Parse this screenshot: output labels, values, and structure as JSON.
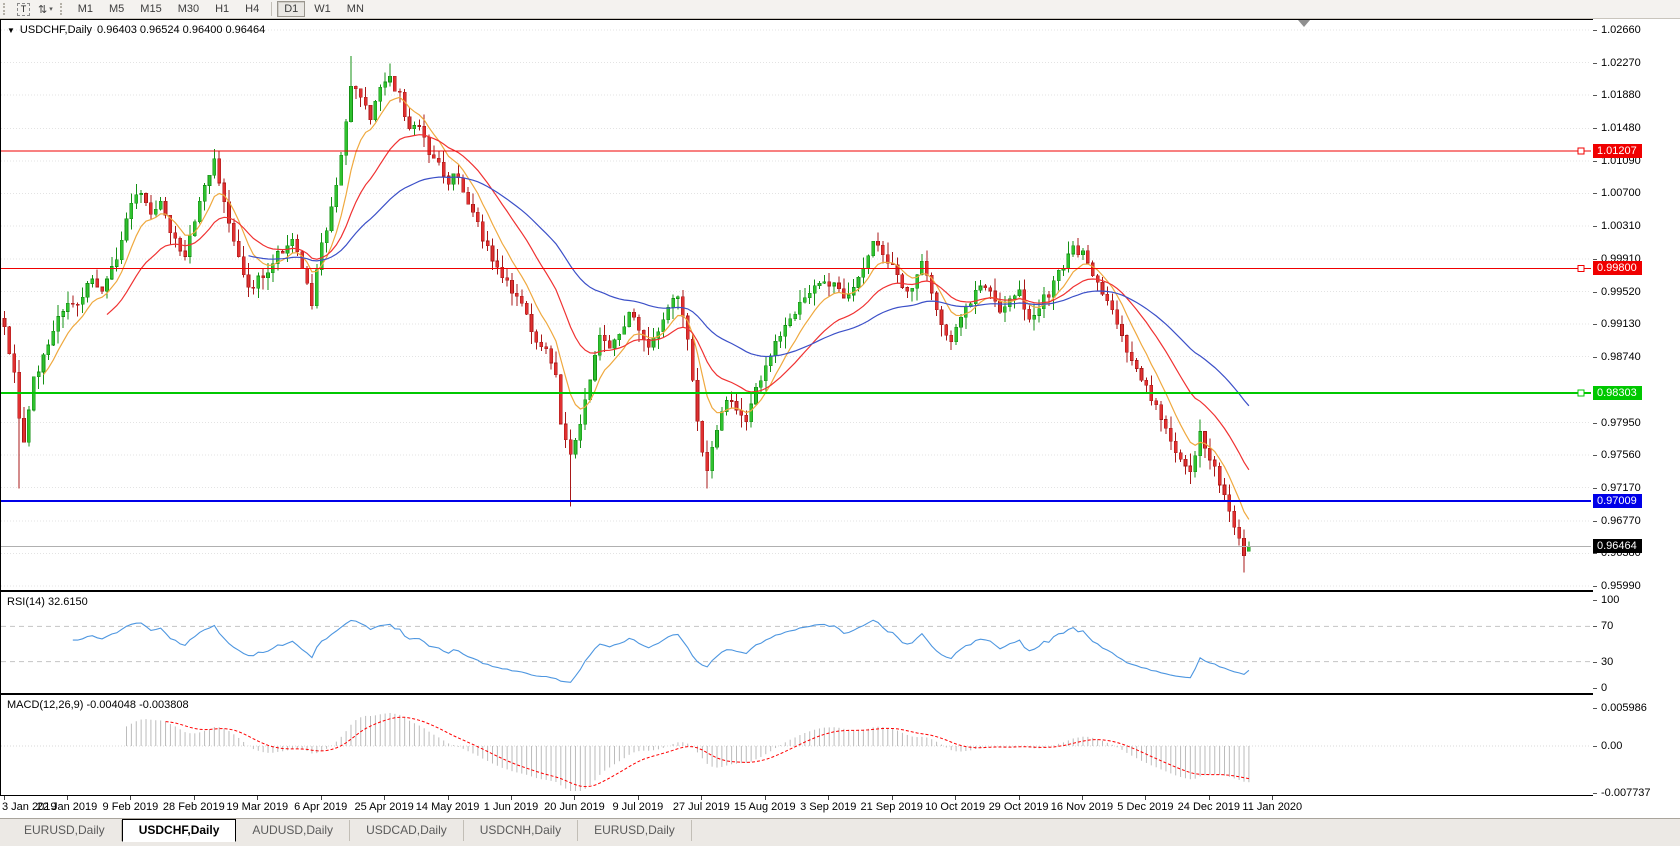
{
  "toolbar": {
    "tools": [
      {
        "name": "text-labels-tool",
        "glyph": "T"
      },
      {
        "name": "cursor-mode-tool",
        "glyph": "⇅",
        "caret": "▾"
      }
    ],
    "timeframes": [
      "M1",
      "M5",
      "M15",
      "M30",
      "H1",
      "H4",
      "D1",
      "W1",
      "MN"
    ],
    "active_timeframe": "D1"
  },
  "window": {
    "title_symbol": "USDCHF,Daily",
    "ohlc_text": "0.96403 0.96524 0.96400 0.96464"
  },
  "chart_data": {
    "type": "candlestick",
    "symbol": "USDCHF",
    "timeframe": "Daily",
    "last_ohlc": {
      "open": 0.96403,
      "high": 0.96524,
      "low": 0.964,
      "close": 0.96464
    },
    "candles_count": 256,
    "noise_seed": 3.7,
    "close_anchors": [
      [
        0,
        0.9905
      ],
      [
        2,
        0.9858
      ],
      [
        3,
        0.98
      ],
      [
        4,
        0.9768
      ],
      [
        6,
        0.9845
      ],
      [
        9,
        0.9892
      ],
      [
        12,
        0.993
      ],
      [
        15,
        0.9938
      ],
      [
        18,
        0.9968
      ],
      [
        20,
        0.9955
      ],
      [
        23,
        0.9992
      ],
      [
        26,
        1.0058
      ],
      [
        28,
        1.0075
      ],
      [
        30,
        1.004
      ],
      [
        32,
        1.0056
      ],
      [
        34,
        1.0025
      ],
      [
        37,
        0.9996
      ],
      [
        40,
        1.0058
      ],
      [
        43,
        1.0108
      ],
      [
        45,
        1.006
      ],
      [
        47,
        1.001
      ],
      [
        50,
        0.9952
      ],
      [
        53,
        0.9972
      ],
      [
        56,
        0.9995
      ],
      [
        59,
        1.0016
      ],
      [
        61,
        0.9976
      ],
      [
        63,
        0.994
      ],
      [
        65,
        1.0008
      ],
      [
        67,
        1.0052
      ],
      [
        69,
        1.0118
      ],
      [
        71,
        1.0196
      ],
      [
        73,
        1.0186
      ],
      [
        75,
        1.016
      ],
      [
        77,
        1.0192
      ],
      [
        79,
        1.0206
      ],
      [
        81,
        1.0188
      ],
      [
        83,
        1.0145
      ],
      [
        85,
        1.0152
      ],
      [
        87,
        1.0118
      ],
      [
        89,
        1.0106
      ],
      [
        91,
        1.0086
      ],
      [
        93,
        1.0092
      ],
      [
        95,
        1.006
      ],
      [
        97,
        1.0032
      ],
      [
        99,
        1.0002
      ],
      [
        101,
        0.9982
      ],
      [
        103,
        0.9962
      ],
      [
        105,
        0.9945
      ],
      [
        107,
        0.9921
      ],
      [
        109,
        0.9896
      ],
      [
        111,
        0.9878
      ],
      [
        113,
        0.985
      ],
      [
        114,
        0.979
      ],
      [
        116,
        0.9752
      ],
      [
        118,
        0.9792
      ],
      [
        120,
        0.9845
      ],
      [
        122,
        0.9902
      ],
      [
        124,
        0.9882
      ],
      [
        126,
        0.9898
      ],
      [
        128,
        0.9926
      ],
      [
        130,
        0.9906
      ],
      [
        132,
        0.989
      ],
      [
        134,
        0.9906
      ],
      [
        136,
        0.9928
      ],
      [
        138,
        0.995
      ],
      [
        140,
        0.9898
      ],
      [
        142,
        0.9792
      ],
      [
        144,
        0.9732
      ],
      [
        146,
        0.9788
      ],
      [
        148,
        0.982
      ],
      [
        150,
        0.9812
      ],
      [
        152,
        0.9798
      ],
      [
        154,
        0.9832
      ],
      [
        156,
        0.986
      ],
      [
        158,
        0.9892
      ],
      [
        160,
        0.9912
      ],
      [
        162,
        0.993
      ],
      [
        164,
        0.9945
      ],
      [
        166,
        0.9955
      ],
      [
        168,
        0.9968
      ],
      [
        170,
        0.996
      ],
      [
        172,
        0.994
      ],
      [
        174,
        0.9962
      ],
      [
        176,
        0.9982
      ],
      [
        178,
        1.001
      ],
      [
        180,
        0.9996
      ],
      [
        182,
        0.998
      ],
      [
        184,
        0.996
      ],
      [
        186,
        0.9955
      ],
      [
        188,
        0.999
      ],
      [
        190,
        0.9948
      ],
      [
        192,
        0.9912
      ],
      [
        194,
        0.9892
      ],
      [
        196,
        0.9922
      ],
      [
        198,
        0.9942
      ],
      [
        200,
        0.9958
      ],
      [
        202,
        0.995
      ],
      [
        204,
        0.9928
      ],
      [
        206,
        0.9942
      ],
      [
        208,
        0.995
      ],
      [
        210,
        0.9916
      ],
      [
        212,
        0.9936
      ],
      [
        214,
        0.995
      ],
      [
        216,
        0.9975
      ],
      [
        218,
        0.9992
      ],
      [
        219,
        1.0006
      ],
      [
        221,
        0.9996
      ],
      [
        223,
        0.9975
      ],
      [
        225,
        0.9952
      ],
      [
        227,
        0.9926
      ],
      [
        229,
        0.9895
      ],
      [
        231,
        0.9869
      ],
      [
        233,
        0.985
      ],
      [
        235,
        0.9826
      ],
      [
        237,
        0.9798
      ],
      [
        239,
        0.9775
      ],
      [
        241,
        0.9748
      ],
      [
        243,
        0.9733
      ],
      [
        245,
        0.9786
      ],
      [
        247,
        0.9752
      ],
      [
        249,
        0.9722
      ],
      [
        251,
        0.9692
      ],
      [
        252,
        0.9672
      ],
      [
        253,
        0.9652
      ],
      [
        254,
        0.964
      ],
      [
        255,
        0.96464
      ]
    ],
    "wick_highs": {
      "43": 1.0123,
      "71": 1.0235,
      "79": 1.0226
    },
    "wick_lows": {
      "3": 0.9716,
      "116": 0.9694,
      "144": 0.9716,
      "254": 0.9615
    },
    "moving_averages": [
      {
        "name": "fast-ma",
        "period": 8,
        "color": "#efa93f"
      },
      {
        "name": "mid-ma",
        "period": 21,
        "color": "#f03232"
      },
      {
        "name": "slow-ma",
        "period": 50,
        "color": "#3c50c8"
      }
    ],
    "candle_colors": {
      "up_fill": "#2fc12f",
      "up_stroke": "#149014",
      "down_fill": "#e03030",
      "down_stroke": "#a81818"
    },
    "y_axis": {
      "labels": [
        {
          "text": "1.02660",
          "price": 1.0266
        },
        {
          "text": "1.02270",
          "price": 1.0227
        },
        {
          "text": "1.01880",
          "price": 1.0188
        },
        {
          "text": "1.01480",
          "price": 1.0148
        },
        {
          "text": "1.01090",
          "price": 1.0109
        },
        {
          "text": "1.00700",
          "price": 1.007
        },
        {
          "text": "1.00310",
          "price": 1.0031
        },
        {
          "text": "0.99910",
          "price": 0.9991
        },
        {
          "text": "0.99520",
          "price": 0.9952
        },
        {
          "text": "0.99130",
          "price": 0.9913
        },
        {
          "text": "0.98740",
          "price": 0.9874
        },
        {
          "text": "0.97950",
          "price": 0.9795
        },
        {
          "text": "0.97560",
          "price": 0.9756
        },
        {
          "text": "0.97170",
          "price": 0.9717
        },
        {
          "text": "0.96770",
          "price": 0.9677
        },
        {
          "text": "0.96380",
          "price": 0.9638
        },
        {
          "text": "0.95990",
          "price": 0.9599
        }
      ]
    },
    "price_lines": [
      {
        "label": "1.01207",
        "price": 1.01207,
        "color": "#f00000",
        "width": 1,
        "handle": true
      },
      {
        "label": "0.99800",
        "price": 0.998,
        "color": "#f00000",
        "width": 1,
        "handle": true
      },
      {
        "label": "0.98303",
        "price": 0.98303,
        "color": "#00c800",
        "width": 2,
        "handle": true
      },
      {
        "label": "0.97009",
        "price": 0.97009,
        "color": "#0000e8",
        "width": 2,
        "handle": false
      }
    ],
    "current_price": {
      "label": "0.96464",
      "price": 0.96464,
      "tag_color": "#000000",
      "line_color": "#b0b0b0"
    },
    "x_axis": {
      "labels": [
        "3 Jan 2019",
        "22 Jan 2019",
        "9 Feb 2019",
        "28 Feb 2019",
        "19 Mar 2019",
        "6 Apr 2019",
        "25 Apr 2019",
        "14 May 2019",
        "1 Jun 2019",
        "20 Jun 2019",
        "9 Jul 2019",
        "27 Jul 2019",
        "15 Aug 2019",
        "3 Sep 2019",
        "21 Sep 2019",
        "10 Oct 2019",
        "29 Oct 2019",
        "16 Nov 2019",
        "5 Dec 2019",
        "24 Dec 2019",
        "11 Jan 2020"
      ]
    },
    "rsi": {
      "label": "RSI(14) 32.6150",
      "period": 14,
      "last_value": 32.615,
      "color": "#4d96e0",
      "levels": [
        {
          "text": "100",
          "value": 100,
          "dashed": false
        },
        {
          "text": "70",
          "value": 70,
          "dashed": true
        },
        {
          "text": "30",
          "value": 30,
          "dashed": true
        },
        {
          "text": "0",
          "value": 0,
          "dashed": false
        }
      ]
    },
    "macd": {
      "label": "MACD(12,26,9) -0.004048 -0.003808",
      "fast": 12,
      "slow": 26,
      "signal": 9,
      "main_value": -0.004048,
      "signal_value": -0.003808,
      "histogram_color": "#bcbcbc",
      "signal_color": "#ff0000",
      "scale_max_label": "0.005986",
      "scale_zero_label": "0.00",
      "scale_min_label": "-0.007737",
      "scale_max": 0.005986,
      "scale_min": -0.007737
    }
  },
  "tabs": {
    "items": [
      {
        "label": "EURUSD,Daily",
        "active": false
      },
      {
        "label": "USDCHF,Daily",
        "active": true
      },
      {
        "label": "AUDUSD,Daily",
        "active": false
      },
      {
        "label": "USDCAD,Daily",
        "active": false
      },
      {
        "label": "USDCNH,Daily",
        "active": false
      },
      {
        "label": "EURUSD,Daily",
        "active": false
      }
    ]
  }
}
